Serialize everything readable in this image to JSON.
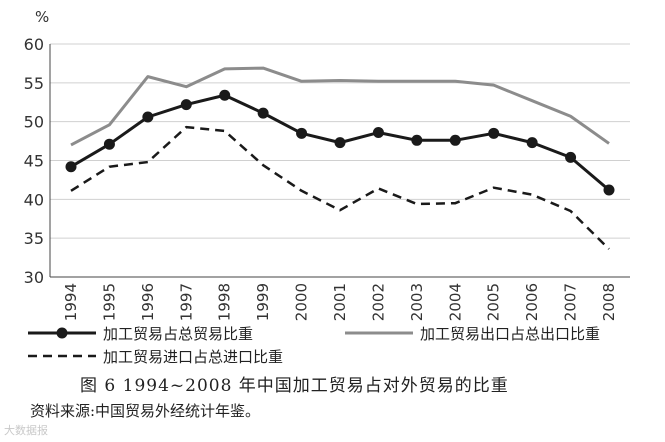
{
  "chart_data": {
    "type": "line",
    "ylabel": "%",
    "ylim": [
      30,
      60
    ],
    "yticks": [
      "30",
      "35",
      "40",
      "45",
      "50",
      "55",
      "60"
    ],
    "x": [
      "1994",
      "1995",
      "1996",
      "1997",
      "1998",
      "1999",
      "2000",
      "2001",
      "2002",
      "2003",
      "2004",
      "2005",
      "2006",
      "2007",
      "2008"
    ],
    "grid": "horizontal",
    "series": [
      {
        "name": "加工贸易占总贸易比重",
        "style": "solid-markers",
        "color": "#1a1a1a",
        "values": [
          44.2,
          47.1,
          50.6,
          52.2,
          53.4,
          51.1,
          48.5,
          47.3,
          48.6,
          47.6,
          47.6,
          48.5,
          47.3,
          45.4,
          41.2
        ]
      },
      {
        "name": "加工贸易出口占总出口比重",
        "style": "solid-gray",
        "color": "#8c8c8c",
        "values": [
          47.0,
          49.6,
          55.8,
          54.5,
          56.8,
          56.9,
          55.2,
          55.3,
          55.2,
          55.2,
          55.2,
          54.7,
          52.7,
          50.7,
          47.2
        ]
      },
      {
        "name": "加工贸易进口占总进口比重",
        "style": "dashed",
        "color": "#1a1a1a",
        "values": [
          41.1,
          44.2,
          44.8,
          49.3,
          48.8,
          44.4,
          41.1,
          38.6,
          41.4,
          39.4,
          39.5,
          41.5,
          40.6,
          38.5,
          33.6
        ]
      }
    ]
  },
  "caption": "图 6  1994~2008 年中国加工贸易占对外贸易的比重",
  "source": "资料来源:中国贸易外经统计年鉴。",
  "watermark": "大数据报"
}
